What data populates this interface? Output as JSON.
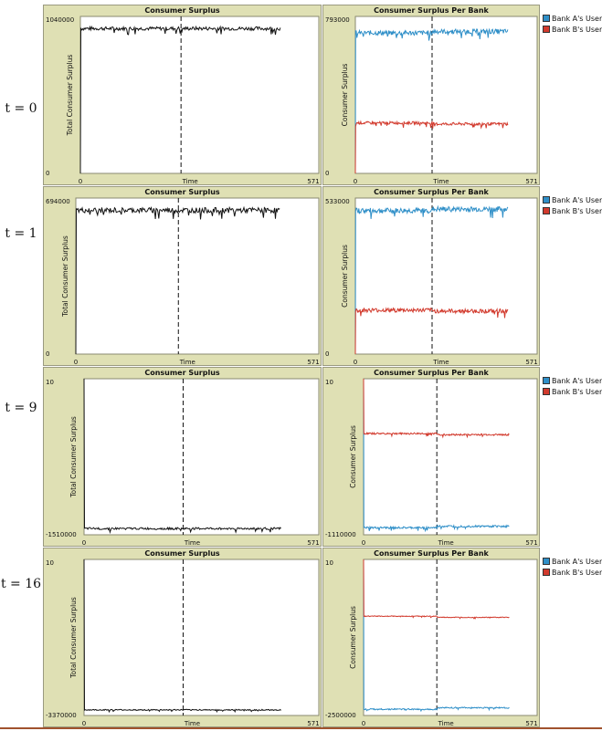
{
  "rows": [
    {
      "t_label": "t = 0"
    },
    {
      "t_label": "t = 1"
    },
    {
      "t_label": "t = 9"
    },
    {
      "t_label": "t = 16"
    }
  ],
  "colors": {
    "panel_bg": "#dfe0b4",
    "plot_bg": "#ffffff",
    "total": "#111111",
    "bank_a": "#2f8fc8",
    "bank_b": "#d23a2d"
  },
  "legend": [
    {
      "name": "Bank A's Users",
      "color": "#2f8fc8"
    },
    {
      "name": "Bank B's Users",
      "color": "#d23a2d"
    }
  ],
  "chart_data": [
    {
      "type": "line",
      "title": "Consumer Surplus",
      "xlabel": "Time",
      "ylabel": "Total Consumer Surplus",
      "xlim": [
        0,
        571
      ],
      "ylim": [
        0,
        1040000
      ],
      "x_tick_labels": [
        "0",
        "571"
      ],
      "y_tick_labels": [
        "0",
        "1040000"
      ],
      "x_end": 480,
      "vline_x": 241,
      "series": [
        {
          "key": "total",
          "level": 960000,
          "noise": 12000
        }
      ]
    },
    {
      "type": "line",
      "title": "Consumer Surplus Per Bank",
      "xlabel": "Time",
      "ylabel": "Consumer Surplus",
      "xlim": [
        0,
        571
      ],
      "ylim": [
        0,
        793000
      ],
      "x_tick_labels": [
        "0",
        "571"
      ],
      "y_tick_labels": [
        "0",
        "793000"
      ],
      "x_end": 480,
      "vline_x": 241,
      "series": [
        {
          "name": "Bank A's Users",
          "key": "bank_a",
          "level": 710000,
          "noise": 12000
        },
        {
          "name": "Bank B's Users",
          "key": "bank_b",
          "level": 255000,
          "noise": 7000
        }
      ]
    },
    {
      "type": "line",
      "title": "Consumer Surplus",
      "xlabel": "Time",
      "ylabel": "Total Consumer Surplus",
      "xlim": [
        0,
        571
      ],
      "ylim": [
        0,
        694000
      ],
      "x_tick_labels": [
        "0",
        "571"
      ],
      "y_tick_labels": [
        "0",
        "694000"
      ],
      "x_end": 480,
      "vline_x": 241,
      "series": [
        {
          "key": "total",
          "level": 640000,
          "noise": 12000
        }
      ]
    },
    {
      "type": "line",
      "title": "Consumer Surplus Per Bank",
      "xlabel": "Time",
      "ylabel": "Consumer Surplus",
      "xlim": [
        0,
        571
      ],
      "ylim": [
        0,
        533000
      ],
      "x_tick_labels": [
        "0",
        "571"
      ],
      "y_tick_labels": [
        "0",
        "533000"
      ],
      "x_end": 480,
      "vline_x": 241,
      "series": [
        {
          "name": "Bank A's Users",
          "key": "bank_a",
          "level": 490000,
          "noise": 9000
        },
        {
          "name": "Bank B's Users",
          "key": "bank_b",
          "level": 150000,
          "noise": 7000
        }
      ]
    },
    {
      "type": "line",
      "title": "Consumer Surplus",
      "xlabel": "Time",
      "ylabel": "Total Consumer Surplus",
      "xlim": [
        0,
        571
      ],
      "ylim": [
        -1510000,
        10
      ],
      "x_tick_labels": [
        "0",
        "571"
      ],
      "y_tick_labels": [
        "-1510000",
        "10"
      ],
      "x_end": 480,
      "vline_x": 241,
      "series": [
        {
          "key": "total",
          "level": -1450000,
          "noise": 10000
        }
      ]
    },
    {
      "type": "line",
      "title": "Consumer Surplus Per Bank",
      "xlabel": "Time",
      "ylabel": "Consumer Surplus",
      "xlim": [
        0,
        571
      ],
      "ylim": [
        -1110000,
        10
      ],
      "x_tick_labels": [
        "0",
        "571"
      ],
      "y_tick_labels": [
        "-1110000",
        "10"
      ],
      "x_end": 480,
      "vline_x": 241,
      "series": [
        {
          "name": "Bank A's Users",
          "key": "bank_a",
          "level": -1060000,
          "noise": 7000
        },
        {
          "name": "Bank B's Users",
          "key": "bank_b",
          "level": -390000,
          "noise": 6000
        }
      ]
    },
    {
      "type": "line",
      "title": "Consumer Surplus",
      "xlabel": "Time",
      "ylabel": "Total Consumer Surplus",
      "xlim": [
        0,
        571
      ],
      "ylim": [
        -3370000,
        10
      ],
      "x_tick_labels": [
        "0",
        "571"
      ],
      "y_tick_labels": [
        "-3370000",
        "10"
      ],
      "x_end": 480,
      "vline_x": 241,
      "series": [
        {
          "key": "total",
          "level": -3250000,
          "noise": 12000
        }
      ]
    },
    {
      "type": "line",
      "title": "Consumer Surplus Per Bank",
      "xlabel": "Time",
      "ylabel": "Consumer Surplus",
      "xlim": [
        0,
        571
      ],
      "ylim": [
        -2500000,
        10
      ],
      "x_tick_labels": [
        "0",
        "571"
      ],
      "y_tick_labels": [
        "-2500000",
        "10"
      ],
      "x_end": 480,
      "vline_x": 241,
      "series": [
        {
          "name": "Bank A's Users",
          "key": "bank_a",
          "level": -2400000,
          "noise": 10000
        },
        {
          "name": "Bank B's Users",
          "key": "bank_b",
          "level": -910000,
          "noise": 6000
        }
      ]
    }
  ]
}
